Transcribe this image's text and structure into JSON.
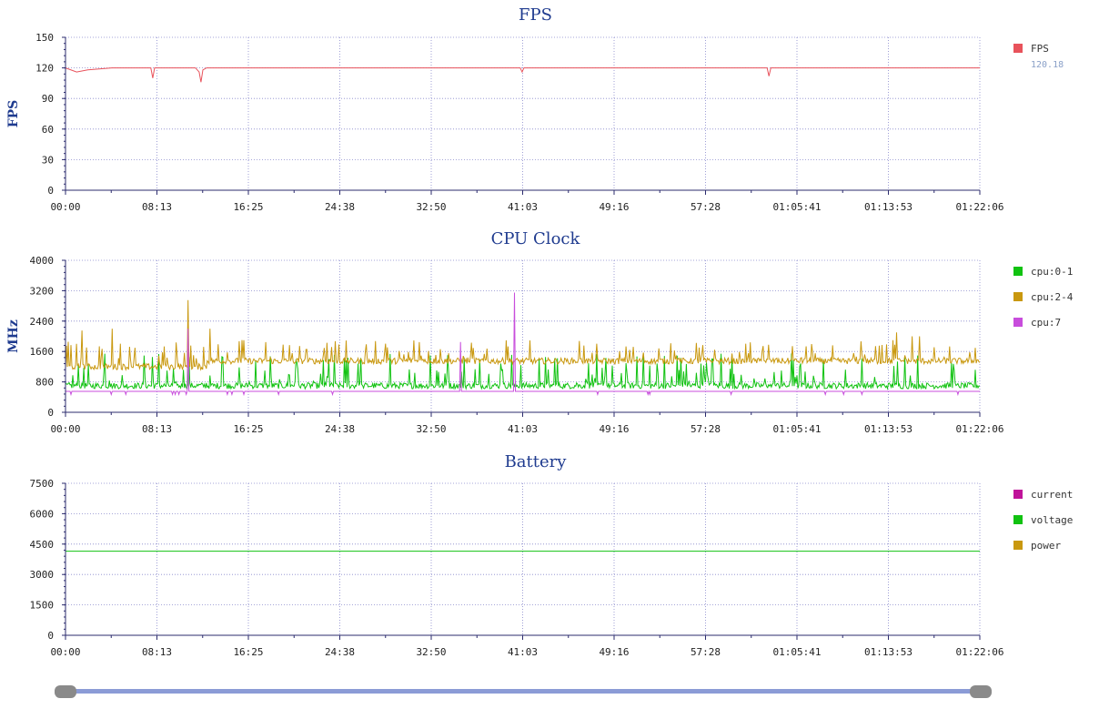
{
  "time_ticks": [
    "00:00",
    "08:13",
    "16:25",
    "24:38",
    "32:50",
    "41:03",
    "49:16",
    "57:28",
    "01:05:41",
    "01:13:53",
    "01:22:06"
  ],
  "chart_data": [
    {
      "type": "line",
      "title": "FPS",
      "ylabel": "FPS",
      "xlabel": "",
      "ylim": [
        0,
        150
      ],
      "y_ticks": [
        "0",
        "30",
        "60",
        "90",
        "120",
        "150"
      ],
      "x_range_seconds": [
        0,
        4926
      ],
      "grid": true,
      "legend_position": "right",
      "series": [
        {
          "name": "FPS",
          "color": "#e8525b",
          "legend_value": "120.18",
          "baseline": 120,
          "points": [
            [
              0,
              120
            ],
            [
              60,
              116
            ],
            [
              120,
              118
            ],
            [
              250,
              120
            ],
            [
              460,
              120
            ],
            [
              470,
              110
            ],
            [
              480,
              120
            ],
            [
              700,
              120
            ],
            [
              720,
              116
            ],
            [
              730,
              106
            ],
            [
              740,
              118
            ],
            [
              760,
              120
            ],
            [
              2450,
              120
            ],
            [
              2460,
              116
            ],
            [
              2470,
              120
            ],
            [
              3780,
              120
            ],
            [
              3790,
              112
            ],
            [
              3800,
              120
            ],
            [
              4926,
              120
            ]
          ]
        }
      ]
    },
    {
      "type": "line",
      "title": "CPU Clock",
      "ylabel": "MHz",
      "xlabel": "",
      "ylim": [
        0,
        4000
      ],
      "y_ticks": [
        "0",
        "800",
        "1600",
        "2400",
        "3200",
        "4000"
      ],
      "x_range_seconds": [
        0,
        4926
      ],
      "grid": true,
      "legend_position": "right",
      "series": [
        {
          "name": "cpu:0-1",
          "color": "#11c211",
          "base": 700,
          "spike_max": 1550,
          "spikes": 160
        },
        {
          "name": "cpu:2-4",
          "color": "#c9980f",
          "base": 1350,
          "early_base": 1200,
          "spike_max": 1900,
          "spikes": 140,
          "big_spikes": [
            [
              90,
              2150
            ],
            [
              250,
              2200
            ],
            [
              660,
              2950
            ],
            [
              780,
              2200
            ],
            [
              4480,
              2100
            ],
            [
              4560,
              2000
            ],
            [
              4600,
              2000
            ]
          ]
        },
        {
          "name": "cpu:7",
          "color": "#c84ddc",
          "base": 550,
          "big_spikes": [
            [
              660,
              2200
            ],
            [
              2130,
              1850
            ],
            [
              2420,
              3150
            ]
          ]
        }
      ]
    },
    {
      "type": "line",
      "title": "Battery",
      "ylabel": "",
      "xlabel": "",
      "ylim": [
        0,
        7500
      ],
      "y_ticks": [
        "0",
        "1500",
        "3000",
        "4500",
        "6000",
        "7500"
      ],
      "x_range_seconds": [
        0,
        4926
      ],
      "grid": true,
      "legend_position": "right",
      "series": [
        {
          "name": "current",
          "color": "#c0139a",
          "points": [
            [
              0,
              0
            ],
            [
              4926,
              0
            ]
          ]
        },
        {
          "name": "voltage",
          "color": "#11c211",
          "points": [
            [
              0,
              4150
            ],
            [
              4926,
              4150
            ]
          ]
        },
        {
          "name": "power",
          "color": "#c9980f",
          "points": [
            [
              0,
              0
            ],
            [
              4926,
              0
            ]
          ]
        }
      ]
    }
  ],
  "slider": {
    "range_start": 0,
    "range_end": 1
  }
}
